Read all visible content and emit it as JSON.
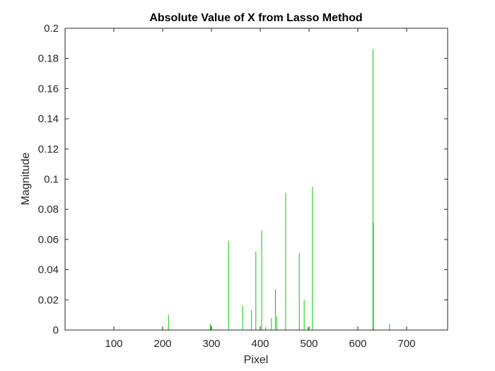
{
  "chart_data": {
    "type": "bar",
    "title": "Absolute Value of X from Lasso Method",
    "xlabel": "Pixel",
    "ylabel": "Magnitude",
    "xlim": [
      0,
      784
    ],
    "ylim": [
      0,
      0.2
    ],
    "xticks": [
      100,
      200,
      300,
      400,
      500,
      600,
      700
    ],
    "yticks": [
      0,
      0.02,
      0.04,
      0.06,
      0.08,
      0.1,
      0.12,
      0.14,
      0.16,
      0.18,
      0.2
    ],
    "grid": false,
    "legend": "none",
    "series": [
      {
        "color": "#00cc00",
        "x": [
          212,
          298,
          299,
          335,
          364,
          382,
          391,
          400,
          403,
          411,
          423,
          431,
          434,
          452,
          480,
          490,
          498,
          507,
          631,
          632,
          665
        ],
        "values": [
          0.01,
          0.004,
          0.003,
          0.059,
          0.016,
          0.013,
          0.052,
          0.002,
          0.066,
          0.002,
          0.008,
          0.027,
          0.009,
          0.091,
          0.051,
          0.02,
          0.002,
          0.095,
          0.186,
          0.071,
          0.004
        ]
      }
    ]
  }
}
